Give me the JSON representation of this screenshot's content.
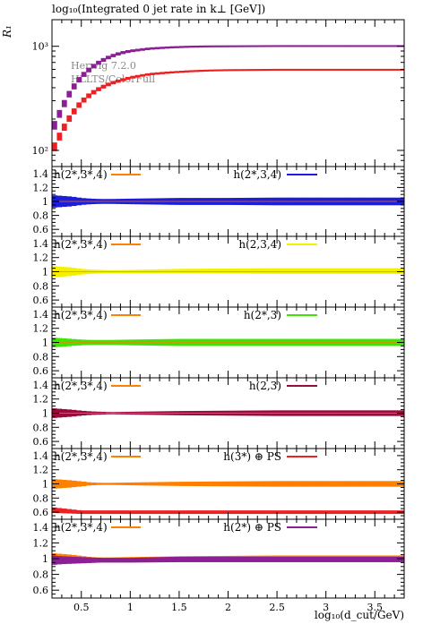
{
  "figure": {
    "title": "log₁₀(Integrated 0 jet rate in k⊥ [GeV])",
    "xlabel": "log₁₀(d_cut/GeV)",
    "generator_line1": "Herwig 7.2.0",
    "generator_line2": "HLLTS/ColorFull"
  },
  "colors": {
    "ref": "#ff7f00",
    "blue": "#1c1cdc",
    "yellow": "#f5f000",
    "green": "#3be600",
    "darkred": "#9b0a3c",
    "red": "#f02020",
    "purple": "#8c1e96"
  },
  "chart_data": [
    {
      "type": "area",
      "panel": "main",
      "ylabel": "R₁",
      "yscale": "log",
      "ylim": [
        70,
        1800
      ],
      "xlim": [
        0.2,
        3.8
      ],
      "x_ticks": [
        "0.5",
        "1",
        "1.5",
        "2",
        "2.5",
        "3",
        "3.5"
      ],
      "y_ticks": [
        "10²",
        "10³"
      ],
      "x": [
        0.2,
        0.3,
        0.4,
        0.5,
        0.6,
        0.7,
        0.8,
        0.9,
        1.0,
        1.2,
        1.4,
        1.6,
        1.8,
        2.0,
        2.5,
        3.0,
        3.5,
        3.8
      ],
      "series": [
        {
          "color_key": "purple",
          "values": [
            150,
            250,
            380,
            510,
            620,
            720,
            800,
            860,
            900,
            950,
            975,
            990,
            998,
            1000,
            1005,
            1005,
            1005,
            1005
          ]
        },
        {
          "color_key": "red",
          "values": [
            95,
            150,
            220,
            290,
            350,
            400,
            440,
            470,
            500,
            540,
            560,
            575,
            585,
            590,
            595,
            595,
            595,
            595
          ]
        }
      ]
    },
    {
      "type": "area",
      "panel": "ratio",
      "ylim": [
        0.5,
        1.5
      ],
      "y_ticks": [
        "1.4",
        "1.2",
        "1",
        "0.8",
        "0.6"
      ],
      "x": [
        0.2,
        0.3,
        0.4,
        0.5,
        0.6,
        0.7,
        0.8,
        1.0,
        1.5,
        2.0,
        2.5,
        3.0,
        3.5,
        3.8
      ],
      "legend_left": "h(2*,3*,4)",
      "legend_right": "h(2*,3,4)",
      "right_color_key": "blue",
      "ratio": [
        1,
        1,
        1,
        1,
        1,
        1,
        1,
        1,
        1,
        1,
        1,
        1,
        1,
        1
      ],
      "band": [
        0.09,
        0.08,
        0.07,
        0.05,
        0.04,
        0.035,
        0.035,
        0.04,
        0.05,
        0.05,
        0.055,
        0.055,
        0.055,
        0.055
      ]
    },
    {
      "type": "area",
      "panel": "ratio",
      "ylim": [
        0.5,
        1.5
      ],
      "y_ticks": [
        "1.4",
        "1.2",
        "1",
        "0.8",
        "0.6"
      ],
      "x": [
        0.2,
        0.3,
        0.4,
        0.5,
        0.6,
        0.7,
        0.8,
        1.0,
        1.5,
        2.0,
        2.5,
        3.0,
        3.5,
        3.8
      ],
      "legend_left": "h(2*,3*,4)",
      "legend_right": "h(2,3,4)",
      "right_color_key": "yellow",
      "ratio": [
        1,
        1,
        1,
        1,
        1,
        1,
        1,
        1,
        1.01,
        1.01,
        1.01,
        1.01,
        1.01,
        1.01
      ],
      "band": [
        0.08,
        0.07,
        0.06,
        0.04,
        0.03,
        0.025,
        0.02,
        0.025,
        0.03,
        0.035,
        0.04,
        0.04,
        0.04,
        0.04
      ]
    },
    {
      "type": "area",
      "panel": "ratio",
      "ylim": [
        0.5,
        1.5
      ],
      "y_ticks": [
        "1.4",
        "1.2",
        "1",
        "0.8",
        "0.6"
      ],
      "x": [
        0.2,
        0.3,
        0.4,
        0.5,
        0.6,
        0.7,
        0.8,
        1.0,
        1.5,
        2.0,
        2.5,
        3.0,
        3.5,
        3.8
      ],
      "legend_left": "h(2*,3*,4)",
      "legend_right": "h(2*,3)",
      "right_color_key": "green",
      "ratio": [
        1,
        1,
        1,
        1,
        1,
        1,
        1,
        1,
        1,
        1,
        1,
        1,
        1,
        1
      ],
      "band": [
        0.07,
        0.06,
        0.05,
        0.04,
        0.035,
        0.035,
        0.035,
        0.04,
        0.05,
        0.05,
        0.05,
        0.05,
        0.05,
        0.05
      ]
    },
    {
      "type": "area",
      "panel": "ratio",
      "ylim": [
        0.5,
        1.5
      ],
      "y_ticks": [
        "1.4",
        "1.2",
        "1",
        "0.8",
        "0.6"
      ],
      "x": [
        0.2,
        0.3,
        0.4,
        0.5,
        0.6,
        0.7,
        0.8,
        1.0,
        1.5,
        2.0,
        2.5,
        3.0,
        3.5,
        3.8
      ],
      "legend_left": "h(2*,3*,4)",
      "legend_right": "h(2,3)",
      "right_color_key": "darkred",
      "ratio": [
        1,
        1,
        1,
        1,
        1,
        1,
        1,
        1,
        1,
        1,
        1,
        1,
        1,
        1
      ],
      "band": [
        0.07,
        0.06,
        0.05,
        0.035,
        0.025,
        0.02,
        0.015,
        0.02,
        0.03,
        0.035,
        0.04,
        0.04,
        0.04,
        0.04
      ]
    },
    {
      "type": "area",
      "panel": "ratio",
      "ylim": [
        0.5,
        1.5
      ],
      "y_ticks": [
        "1.4",
        "1.2",
        "1",
        "0.8",
        "0.6"
      ],
      "x": [
        0.2,
        0.3,
        0.4,
        0.5,
        0.6,
        0.7,
        0.8,
        1.0,
        1.5,
        2.0,
        2.5,
        3.0,
        3.5,
        3.8
      ],
      "legend_left": "h(2*,3*,4)",
      "legend_right": "h(3*) ⊕ PS",
      "right_color_key": "red",
      "ratio": [
        0.63,
        0.62,
        0.61,
        0.6,
        0.6,
        0.6,
        0.6,
        0.6,
        0.6,
        0.6,
        0.6,
        0.6,
        0.6,
        0.6
      ],
      "band": [
        0.04,
        0.035,
        0.03,
        0.025,
        0.025,
        0.025,
        0.025,
        0.025,
        0.025,
        0.025,
        0.025,
        0.025,
        0.025,
        0.025
      ],
      "ref_band": [
        0.07,
        0.06,
        0.05,
        0.035,
        0.02,
        0.015,
        0.015,
        0.02,
        0.03,
        0.035,
        0.04,
        0.04,
        0.04,
        0.04
      ]
    },
    {
      "type": "area",
      "panel": "ratio",
      "ylim": [
        0.5,
        1.5
      ],
      "y_ticks": [
        "1.4",
        "1.2",
        "1",
        "0.8",
        "0.6"
      ],
      "x_ticks": [
        "0.5",
        "1",
        "1.5",
        "2",
        "2.5",
        "3",
        "3.5"
      ],
      "x": [
        0.2,
        0.3,
        0.4,
        0.5,
        0.6,
        0.7,
        0.8,
        1.0,
        1.5,
        2.0,
        2.5,
        3.0,
        3.5,
        3.8
      ],
      "legend_left": "h(2*,3*,4)",
      "legend_right": "h(2*) ⊕ PS",
      "right_color_key": "purple",
      "ratio": [
        0.98,
        0.98,
        0.98,
        0.98,
        0.98,
        0.98,
        0.98,
        0.98,
        0.99,
        0.99,
        0.99,
        0.99,
        0.99,
        0.99
      ],
      "band": [
        0.06,
        0.05,
        0.045,
        0.04,
        0.035,
        0.03,
        0.03,
        0.03,
        0.035,
        0.035,
        0.035,
        0.035,
        0.035,
        0.035
      ],
      "ref_band": [
        0.07,
        0.06,
        0.05,
        0.035,
        0.02,
        0.015,
        0.015,
        0.02,
        0.03,
        0.035,
        0.04,
        0.04,
        0.04,
        0.04
      ]
    }
  ]
}
